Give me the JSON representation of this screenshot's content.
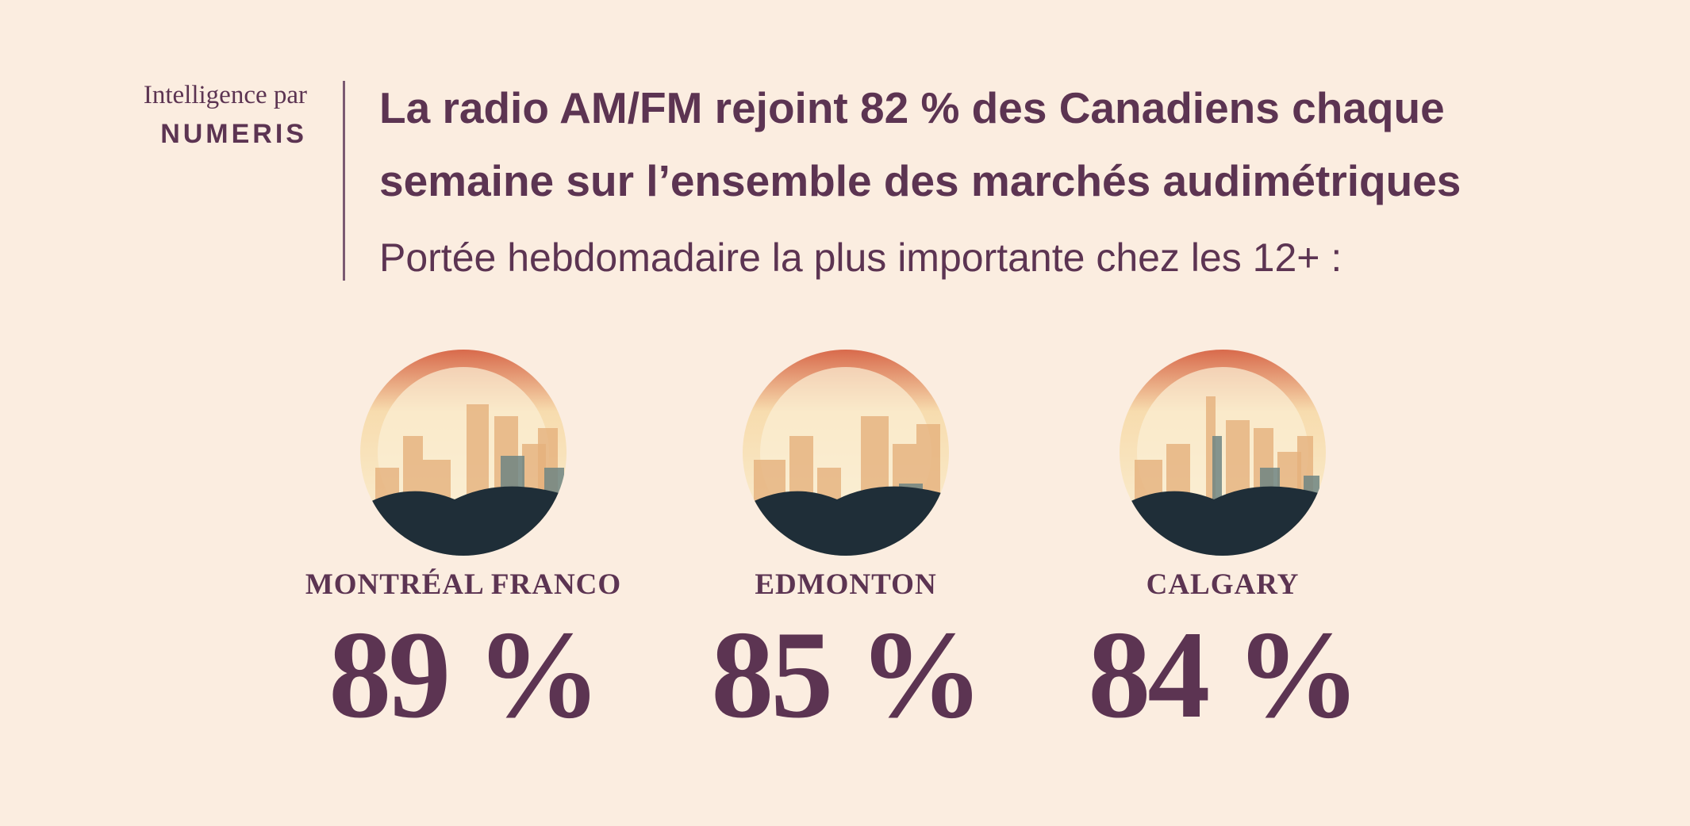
{
  "brand": {
    "prefix": "Intelligence par",
    "name": "NUMERIS"
  },
  "title_lines": [
    "La radio AM/FM rejoint 82 % des Canadiens chaque",
    "semaine sur l’ensemble des marchés audimétriques"
  ],
  "subtitle": "Portée hebdomadaire la plus importante chez les 12+ :",
  "markets": [
    {
      "name": "MONTRÉAL FRANCO",
      "value": "89 %"
    },
    {
      "name": "EDMONTON",
      "value": "85 %"
    },
    {
      "name": "CALGARY",
      "value": "84 %"
    }
  ]
}
